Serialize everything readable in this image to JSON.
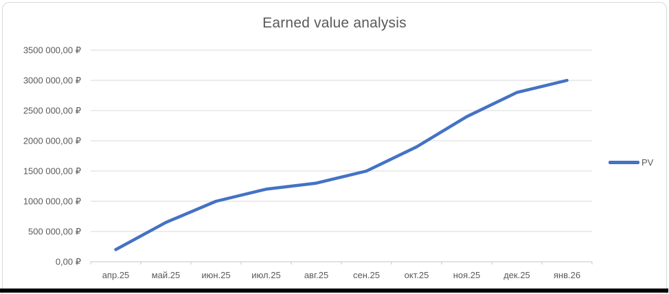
{
  "title": "Earned value analysis",
  "legend": {
    "series_label": "PV"
  },
  "colors": {
    "series_line": "#4472C4",
    "gridline": "#D9D9D9",
    "axis_line": "#C6C6C6",
    "tick": "#C6C6C6",
    "label_text": "#595959",
    "frame_border": "#D9D9D9",
    "window_edge": "#000000"
  },
  "chart_data": {
    "type": "line",
    "title": "Earned value analysis",
    "categories": [
      "апр.25",
      "май.25",
      "июн.25",
      "июл.25",
      "авг.25",
      "сен.25",
      "окт.25",
      "ноя.25",
      "дек.25",
      "янв.26"
    ],
    "series": [
      {
        "name": "PV",
        "color": "#4472C4",
        "values": [
          200000,
          650000,
          1000000,
          1200000,
          1300000,
          1500000,
          1900000,
          2400000,
          2800000,
          3000000
        ]
      }
    ],
    "xlabel": "",
    "ylabel": "",
    "ylim": [
      0,
      3500000
    ],
    "y_tick_step": 500000,
    "y_tick_labels": [
      "0,00 ₽",
      "500 000,00 ₽",
      "1000 000,00 ₽",
      "1500 000,00 ₽",
      "2000 000,00 ₽",
      "2500 000,00 ₽",
      "3000 000,00 ₽",
      "3500 000,00 ₽"
    ],
    "grid": true,
    "legend_position": "right"
  }
}
